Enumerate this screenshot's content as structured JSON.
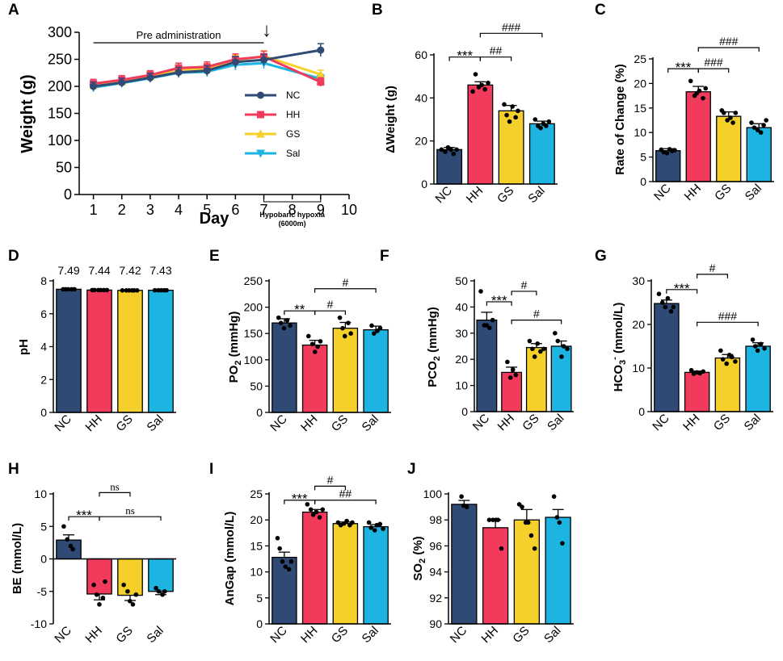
{
  "colors": {
    "NC": "#2e4a75",
    "HH": "#f23a5c",
    "GS": "#f6d02a",
    "Sal": "#1db4e2",
    "axis": "#000000"
  },
  "chart_data": [
    {
      "id": "A",
      "panel_label": "A",
      "type": "line",
      "xlabel": "Day",
      "ylabel": "Weight (g)",
      "x": [
        1,
        2,
        3,
        4,
        5,
        6,
        7,
        9
      ],
      "xticks": [
        "1",
        "2",
        "3",
        "4",
        "5",
        "6",
        "7",
        "8",
        "9",
        "10"
      ],
      "xlim": [
        0.5,
        10
      ],
      "ylim": [
        0,
        300
      ],
      "yticks": [
        "0",
        "50",
        "100",
        "150",
        "200",
        "250",
        "300"
      ],
      "annotations": {
        "pre": "Pre administration",
        "arrow": "↓",
        "hypoxia": "Hypobaric hypoxia",
        "altitude": "(6000m)"
      },
      "series": [
        {
          "name": "NC",
          "marker": "circle",
          "values": [
            200,
            207,
            216,
            226,
            229,
            245,
            249,
            267
          ],
          "err": [
            8,
            8,
            8,
            9,
            9,
            10,
            10,
            12
          ]
        },
        {
          "name": "HH",
          "marker": "square",
          "values": [
            205,
            212,
            221,
            234,
            236,
            250,
            255,
            208
          ],
          "err": [
            8,
            8,
            8,
            9,
            9,
            10,
            10,
            8
          ]
        },
        {
          "name": "GS",
          "marker": "triangle-up",
          "values": [
            202,
            209,
            219,
            231,
            233,
            248,
            256,
            222
          ],
          "err": [
            8,
            8,
            8,
            9,
            9,
            10,
            10,
            8
          ]
        },
        {
          "name": "Sal",
          "marker": "triangle-down",
          "values": [
            198,
            206,
            215,
            225,
            227,
            240,
            243,
            214
          ],
          "err": [
            8,
            8,
            8,
            9,
            9,
            10,
            10,
            8
          ]
        }
      ]
    },
    {
      "id": "B",
      "panel_label": "B",
      "type": "bar",
      "ylabel": "ΔWeight (g)",
      "categories": [
        "NC",
        "HH",
        "GS",
        "Sal"
      ],
      "values": [
        16,
        46,
        34,
        28
      ],
      "err": [
        1,
        1.5,
        2.5,
        1.2
      ],
      "points": [
        [
          16,
          15,
          17,
          16,
          14,
          16
        ],
        [
          43,
          51,
          45,
          46,
          44,
          47
        ],
        [
          37,
          32,
          29,
          36,
          31,
          34
        ],
        [
          30,
          27,
          26,
          28,
          27,
          29
        ]
      ],
      "ylim": [
        0,
        60
      ],
      "yticks": [
        "0",
        "20",
        "40",
        "60"
      ],
      "sig": [
        {
          "a": 0,
          "b": 1,
          "label": "***",
          "y": 59
        },
        {
          "a": 1,
          "b": 2,
          "label": "##",
          "y": 59
        },
        {
          "a": 1,
          "b": 3,
          "label": "###",
          "y": 70
        }
      ]
    },
    {
      "id": "C",
      "panel_label": "C",
      "type": "bar",
      "ylabel": "Rate of Change (%)",
      "categories": [
        "NC",
        "HH",
        "GS",
        "Sal"
      ],
      "values": [
        6.3,
        18.3,
        13.3,
        11
      ],
      "err": [
        0.4,
        1.1,
        0.9,
        0.8
      ],
      "points": [
        [
          6.5,
          6,
          5.8,
          6.6,
          6.2,
          6.4
        ],
        [
          20.5,
          17.5,
          18,
          18.5,
          17,
          19
        ],
        [
          14.5,
          14,
          12.5,
          13,
          12,
          14
        ],
        [
          12,
          11,
          10.5,
          10,
          11.5,
          12.5
        ]
      ],
      "ylim": [
        0,
        25
      ],
      "yticks": [
        "0",
        "5",
        "10",
        "15",
        "20",
        "25"
      ],
      "sig": [
        {
          "a": 0,
          "b": 1,
          "label": "***",
          "y": 23
        },
        {
          "a": 1,
          "b": 2,
          "label": "###",
          "y": 23
        },
        {
          "a": 1,
          "b": 3,
          "label": "###",
          "y": 27.3
        }
      ]
    },
    {
      "id": "D",
      "panel_label": "D",
      "type": "bar",
      "ylabel": "pH",
      "categories": [
        "NC",
        "HH",
        "GS",
        "Sal"
      ],
      "values": [
        7.49,
        7.44,
        7.42,
        7.43
      ],
      "err": [
        0.01,
        0.01,
        0.01,
        0.01
      ],
      "value_labels": [
        "7.49",
        "7.44",
        "7.42",
        "7.43"
      ],
      "points": [
        [
          7.49,
          7.49,
          7.49,
          7.49,
          7.49
        ],
        [
          7.44,
          7.44,
          7.44,
          7.44,
          7.44,
          7.44
        ],
        [
          7.42,
          7.42,
          7.42,
          7.42,
          7.42,
          7.42
        ],
        [
          7.43,
          7.43,
          7.43,
          7.43,
          7.43
        ]
      ],
      "ylim": [
        0,
        8
      ],
      "yticks": [
        "0",
        "2",
        "4",
        "6",
        "8"
      ],
      "sig": []
    },
    {
      "id": "E",
      "panel_label": "E",
      "type": "bar",
      "ylabel": "PO",
      "ylabel_sub": "2",
      "ylabel_suffix": " (mmHg)",
      "categories": [
        "NC",
        "HH",
        "GS",
        "Sal"
      ],
      "values": [
        170,
        128,
        160,
        157
      ],
      "err": [
        8,
        9,
        11,
        7
      ],
      "points": [
        [
          180,
          170,
          160,
          175,
          165
        ],
        [
          145,
          130,
          115,
          125,
          135
        ],
        [
          180,
          160,
          145,
          170,
          150
        ],
        [
          165,
          150,
          155,
          160
        ]
      ],
      "ylim": [
        0,
        250
      ],
      "yticks": [
        "0",
        "50",
        "100",
        "150",
        "200",
        "250"
      ],
      "sig": [
        {
          "a": 0,
          "b": 1,
          "label": "**",
          "y": 193
        },
        {
          "a": 1,
          "b": 2,
          "label": "#",
          "y": 193
        },
        {
          "a": 1,
          "b": 3,
          "label": "#",
          "y": 235
        }
      ]
    },
    {
      "id": "F",
      "panel_label": "F",
      "type": "bar",
      "ylabel": "PCO",
      "ylabel_sub": "2",
      "ylabel_suffix": " (mmHg)",
      "categories": [
        "NC",
        "HH",
        "GS",
        "Sal"
      ],
      "values": [
        35,
        15,
        24.5,
        25
      ],
      "err": [
        3,
        2,
        1.5,
        2
      ],
      "points": [
        [
          46,
          33,
          33,
          32,
          35
        ],
        [
          19,
          13,
          16,
          14
        ],
        [
          27,
          24,
          21,
          26,
          23,
          24
        ],
        [
          30,
          27,
          21,
          25,
          24
        ]
      ],
      "ylim": [
        0,
        50
      ],
      "yticks": [
        "0",
        "10",
        "20",
        "30",
        "40",
        "50"
      ],
      "sig": [
        {
          "a": 0,
          "b": 1,
          "label": "***",
          "y": 42
        },
        {
          "a": 1,
          "b": 2,
          "label": "#",
          "y": 46
        },
        {
          "a": 1,
          "b": 3,
          "label": "#",
          "y": 35
        }
      ]
    },
    {
      "id": "G",
      "panel_label": "G",
      "type": "bar",
      "ylabel": "HCO",
      "ylabel_sub": "3",
      "ylabel_sup": "-",
      "ylabel_suffix": " (mmol/L)",
      "categories": [
        "NC",
        "HH",
        "GS",
        "Sal"
      ],
      "values": [
        24.8,
        9,
        12.3,
        15
      ],
      "err": [
        0.8,
        0.3,
        0.8,
        0.8
      ],
      "points": [
        [
          27,
          25,
          24,
          26,
          23,
          24
        ],
        [
          9.5,
          8.7,
          9,
          8.8,
          9.2
        ],
        [
          14,
          12,
          11,
          13,
          12.5,
          11.5
        ],
        [
          16.5,
          15,
          14,
          15.5,
          14.5
        ]
      ],
      "ylim": [
        0,
        30
      ],
      "yticks": [
        "0",
        "10",
        "20",
        "30"
      ],
      "sig": [
        {
          "a": 0,
          "b": 1,
          "label": "***",
          "y": 28
        },
        {
          "a": 1,
          "b": 2,
          "label": "#",
          "y": 31.5
        },
        {
          "a": 1,
          "b": 3,
          "label": "###",
          "y": 20.5
        }
      ]
    },
    {
      "id": "H",
      "panel_label": "H",
      "type": "bar",
      "ylabel": "BE (mmol/L)",
      "categories": [
        "NC",
        "HH",
        "GS",
        "Sal"
      ],
      "values": [
        2.9,
        -5.4,
        -5.6,
        -5
      ],
      "err": [
        0.8,
        0.9,
        0.8,
        0.5
      ],
      "points": [
        [
          5,
          3,
          2,
          1.5
        ],
        [
          -4,
          -5.5,
          -7,
          -6,
          -3.5
        ],
        [
          -4,
          -5,
          -6.5,
          -7,
          -5.5
        ],
        [
          -4.5,
          -5,
          -5.5,
          -5
        ]
      ],
      "ylim": [
        -10,
        10
      ],
      "yticks": [
        "-10",
        "-5",
        "0",
        "5",
        "10"
      ],
      "sig": [
        {
          "a": 0,
          "b": 1,
          "label": "***",
          "y": 6.5
        },
        {
          "a": 1,
          "b": 2,
          "label": "ns",
          "y": 10.2
        },
        {
          "a": 1,
          "b": 3,
          "label": "ns",
          "y": 6.5
        }
      ]
    },
    {
      "id": "I",
      "panel_label": "I",
      "type": "bar",
      "ylabel": "AnGap (mmol/L)",
      "categories": [
        "NC",
        "HH",
        "GS",
        "Sal"
      ],
      "values": [
        12.8,
        21.5,
        19.3,
        18.7
      ],
      "err": [
        1,
        0.5,
        0.3,
        0.4
      ],
      "points": [
        [
          16.5,
          14.5,
          12,
          11,
          10.5,
          12
        ],
        [
          23,
          22,
          21,
          21.5,
          20.5,
          22
        ],
        [
          19.5,
          19,
          19.3,
          19.8,
          19,
          19.5
        ],
        [
          19.5,
          18.5,
          18,
          19,
          19.2,
          18.3
        ]
      ],
      "ylim": [
        0,
        25
      ],
      "yticks": [
        "0",
        "5",
        "10",
        "15",
        "20",
        "25"
      ],
      "sig": [
        {
          "a": 0,
          "b": 1,
          "label": "***",
          "y": 23.8
        },
        {
          "a": 1,
          "b": 2,
          "label": "#",
          "y": 26.5
        },
        {
          "a": 1,
          "b": 3,
          "label": "##",
          "y": 23.8
        }
      ]
    },
    {
      "id": "J",
      "panel_label": "J",
      "type": "bar",
      "ylabel": "SO",
      "ylabel_sub": "2",
      "ylabel_suffix": " (%)",
      "categories": [
        "NC",
        "HH",
        "GS",
        "Sal"
      ],
      "values": [
        99.2,
        97.4,
        98,
        98.2
      ],
      "err": [
        0.3,
        0.6,
        0.8,
        0.6
      ],
      "points": [
        [
          99.8,
          99.1,
          99
        ],
        [
          98,
          98,
          98,
          98,
          95.8
        ],
        [
          99.2,
          99,
          97.8,
          97.8,
          96.8,
          95.8
        ],
        [
          99.8,
          98.2,
          97.8,
          96.2
        ]
      ],
      "ylim": [
        90,
        100
      ],
      "yticks": [
        "90",
        "92",
        "94",
        "96",
        "98",
        "100"
      ],
      "sig": []
    }
  ]
}
